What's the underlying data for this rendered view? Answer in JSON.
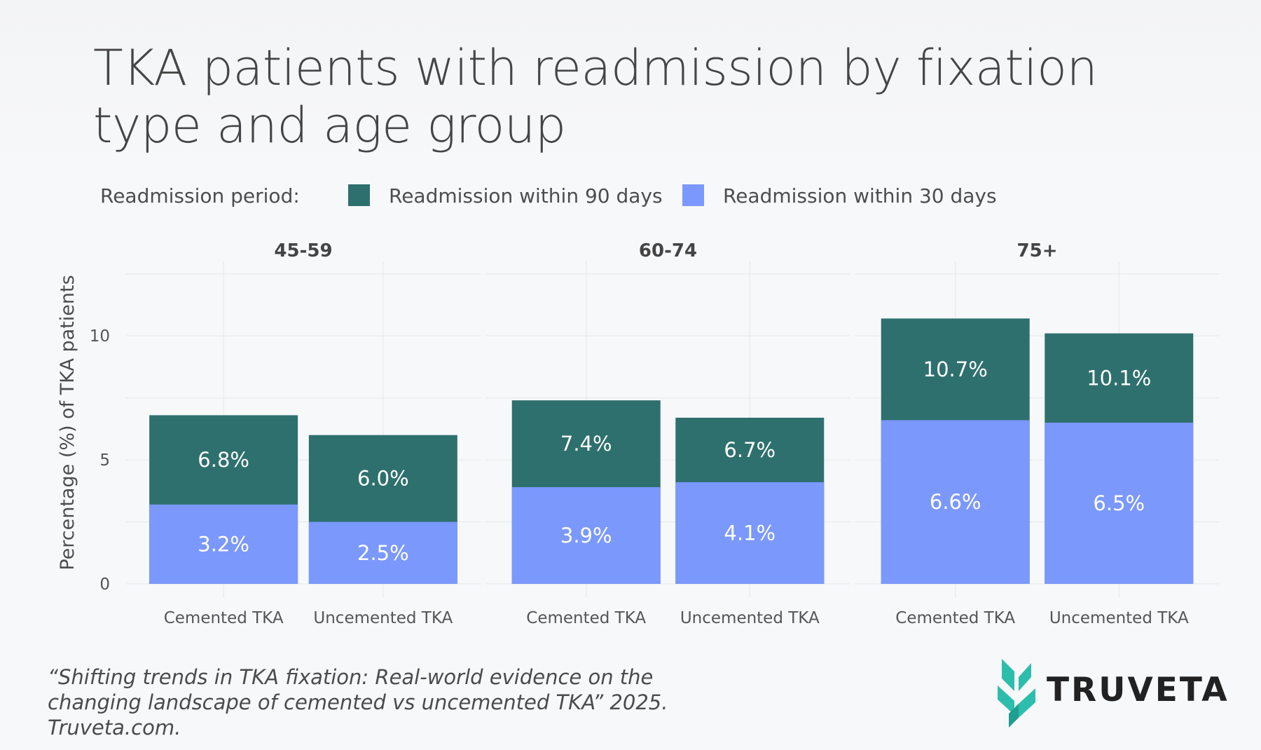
{
  "title": "TKA patients with readmission by fixation type and age group",
  "caption": "“Shifting trends in TKA fixation: Real-world evidence on the changing landscape of cemented vs uncemented TKA” 2025. Truveta.com.",
  "brand": "TRUVETA",
  "colors": {
    "d90": "#2e706e",
    "d30": "#7b98fc",
    "grid": "#e6e6e6",
    "logo": "#2dbdad"
  },
  "chart_data": {
    "type": "bar",
    "stacked": "overlay",
    "title": "TKA patients with readmission by fixation type and age group",
    "ylabel": "Percentage (%) of TKA patients",
    "xlabel": "",
    "ylim": [
      0,
      13
    ],
    "yticks": [
      0,
      5,
      10
    ],
    "legend": {
      "title": "Readmission period:",
      "position": "top-left",
      "entries": [
        "Readmission within 90 days",
        "Readmission within 30 days"
      ]
    },
    "categories": [
      "Cemented TKA",
      "Uncemented TKA"
    ],
    "facets": [
      {
        "label": "45-59",
        "d90": [
          6.8,
          6.0
        ],
        "d30": [
          3.2,
          2.5
        ]
      },
      {
        "label": "60-74",
        "d90": [
          7.4,
          6.7
        ],
        "d30": [
          3.9,
          4.1
        ]
      },
      {
        "label": "75+",
        "d90": [
          10.7,
          10.1
        ],
        "d30": [
          6.6,
          6.5
        ]
      }
    ],
    "series": [
      {
        "name": "Readmission within 90 days",
        "key": "d90"
      },
      {
        "name": "Readmission within 30 days",
        "key": "d30"
      }
    ]
  }
}
